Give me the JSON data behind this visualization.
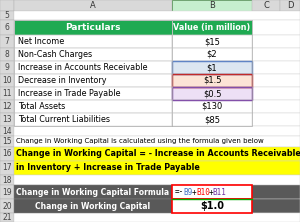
{
  "header_row": [
    "Particulars",
    "Value (in million)"
  ],
  "header_bg": "#1faa52",
  "header_fg": "#ffffff",
  "data_rows": [
    [
      "Net Income",
      "$15"
    ],
    [
      "Non-Cash Charges",
      "$2"
    ],
    [
      "Increase in Accounts Receivable",
      "$1"
    ],
    [
      "Decrease in Inventory",
      "$1.5"
    ],
    [
      "Increase in Trade Payable",
      "$0.5"
    ],
    [
      "Total Assets",
      "$130"
    ],
    [
      "Total Current Liabilities",
      "$85"
    ]
  ],
  "row_bg_b9": "#dce6f1",
  "row_bg_b10": "#fce4d6",
  "row_bg_b11": "#ede0f5",
  "border_b9": "#4472c4",
  "border_b10": "#c00000",
  "border_b11": "#7030a0",
  "note_row15": "Change in Working Capital is calculated using the formula given below",
  "formula_line1": "Change in Working Capital = - Increase in Accounts Receivable + Decrease",
  "formula_line2": "in Inventory + Increase in Trade Payable",
  "yellow_bg": "#ffff00",
  "result_label19": "Change in Working Capital Formula",
  "result_label20": "Change in Working Capital",
  "formula_parts": [
    "=-",
    "B9",
    "+",
    "B10",
    "+",
    "B11"
  ],
  "formula_colors": [
    "#000000",
    "#4472c4",
    "#000000",
    "#ff0000",
    "#000000",
    "#7030a0"
  ],
  "result_value": "$1.0",
  "result_bg": "#595959",
  "result_fg": "#ffffff",
  "result_border_color": "#ff0000",
  "col_header_bg_b": "#c6efce",
  "col_header_bg_default": "#d9d9d9",
  "row_num_bg": "#d9d9d9",
  "figsize": [
    3.0,
    2.22
  ],
  "dpi": 100
}
